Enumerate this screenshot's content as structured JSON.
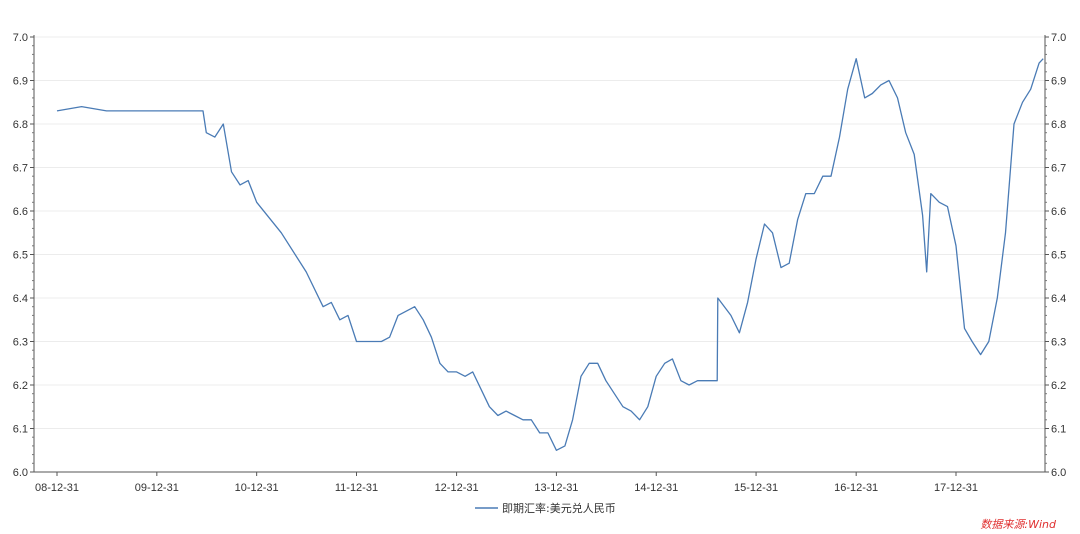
{
  "chart_data": {
    "type": "line",
    "title": "",
    "xlabel": "",
    "ylabel": "",
    "ylim": [
      6.0,
      7.0
    ],
    "yticks": [
      "6.0",
      "6.1",
      "6.2",
      "6.3",
      "6.4",
      "6.5",
      "6.6",
      "6.7",
      "6.8",
      "6.9",
      "7.0"
    ],
    "x_tick_labels": [
      "08-12-31",
      "09-12-31",
      "10-12-31",
      "11-12-31",
      "12-12-31",
      "13-12-31",
      "14-12-31",
      "15-12-31",
      "16-12-31",
      "17-12-31"
    ],
    "grid": true,
    "legend_position": "bottom-center",
    "series": [
      {
        "name": "即期汇率:美元兑人民币",
        "color": "#4a7bb5",
        "points": [
          [
            "08-12-31",
            6.83
          ],
          [
            "09-03-31",
            6.84
          ],
          [
            "09-06-30",
            6.83
          ],
          [
            "09-09-30",
            6.83
          ],
          [
            "09-12-31",
            6.83
          ],
          [
            "10-03-31",
            6.83
          ],
          [
            "10-06-18",
            6.83
          ],
          [
            "10-06-30",
            6.78
          ],
          [
            "10-07-31",
            6.77
          ],
          [
            "10-08-31",
            6.8
          ],
          [
            "10-09-30",
            6.69
          ],
          [
            "10-10-31",
            6.66
          ],
          [
            "10-11-30",
            6.67
          ],
          [
            "10-12-31",
            6.62
          ],
          [
            "11-03-31",
            6.55
          ],
          [
            "11-06-30",
            6.46
          ],
          [
            "11-08-31",
            6.38
          ],
          [
            "11-09-30",
            6.39
          ],
          [
            "11-10-31",
            6.35
          ],
          [
            "11-11-30",
            6.36
          ],
          [
            "11-12-31",
            6.3
          ],
          [
            "12-02-29",
            6.3
          ],
          [
            "12-03-31",
            6.3
          ],
          [
            "12-04-30",
            6.31
          ],
          [
            "12-05-31",
            6.36
          ],
          [
            "12-07-31",
            6.38
          ],
          [
            "12-08-31",
            6.35
          ],
          [
            "12-09-30",
            6.31
          ],
          [
            "12-10-31",
            6.25
          ],
          [
            "12-11-30",
            6.23
          ],
          [
            "12-12-31",
            6.23
          ],
          [
            "13-01-31",
            6.22
          ],
          [
            "13-02-28",
            6.23
          ],
          [
            "13-04-30",
            6.15
          ],
          [
            "13-05-31",
            6.13
          ],
          [
            "13-06-30",
            6.14
          ],
          [
            "13-07-31",
            6.13
          ],
          [
            "13-08-31",
            6.12
          ],
          [
            "13-09-30",
            6.12
          ],
          [
            "13-10-31",
            6.09
          ],
          [
            "13-11-30",
            6.09
          ],
          [
            "13-12-31",
            6.05
          ],
          [
            "14-01-31",
            6.06
          ],
          [
            "14-02-28",
            6.12
          ],
          [
            "14-03-31",
            6.22
          ],
          [
            "14-04-30",
            6.25
          ],
          [
            "14-05-31",
            6.25
          ],
          [
            "14-06-30",
            6.21
          ],
          [
            "14-07-31",
            6.18
          ],
          [
            "14-08-31",
            6.15
          ],
          [
            "14-09-30",
            6.14
          ],
          [
            "14-10-31",
            6.12
          ],
          [
            "14-11-30",
            6.15
          ],
          [
            "14-12-31",
            6.22
          ],
          [
            "15-01-31",
            6.25
          ],
          [
            "15-02-28",
            6.26
          ],
          [
            "15-03-31",
            6.21
          ],
          [
            "15-04-30",
            6.2
          ],
          [
            "15-05-31",
            6.21
          ],
          [
            "15-06-30",
            6.21
          ],
          [
            "15-07-31",
            6.21
          ],
          [
            "15-08-11",
            6.21
          ],
          [
            "15-08-13",
            6.4
          ],
          [
            "15-09-30",
            6.36
          ],
          [
            "15-10-31",
            6.32
          ],
          [
            "15-11-30",
            6.39
          ],
          [
            "15-12-31",
            6.49
          ],
          [
            "16-01-31",
            6.57
          ],
          [
            "16-02-29",
            6.55
          ],
          [
            "16-03-31",
            6.47
          ],
          [
            "16-04-30",
            6.48
          ],
          [
            "16-05-31",
            6.58
          ],
          [
            "16-06-30",
            6.64
          ],
          [
            "16-07-31",
            6.64
          ],
          [
            "16-08-31",
            6.68
          ],
          [
            "16-09-30",
            6.68
          ],
          [
            "16-10-31",
            6.77
          ],
          [
            "16-11-30",
            6.88
          ],
          [
            "16-12-31",
            6.95
          ],
          [
            "17-01-31",
            6.86
          ],
          [
            "17-02-28",
            6.87
          ],
          [
            "17-03-31",
            6.89
          ],
          [
            "17-04-30",
            6.9
          ],
          [
            "17-05-31",
            6.86
          ],
          [
            "17-06-30",
            6.78
          ],
          [
            "17-07-31",
            6.73
          ],
          [
            "17-08-31",
            6.59
          ],
          [
            "17-09-15",
            6.46
          ],
          [
            "17-09-30",
            6.64
          ],
          [
            "17-10-31",
            6.62
          ],
          [
            "17-11-30",
            6.61
          ],
          [
            "17-12-31",
            6.52
          ],
          [
            "18-01-31",
            6.33
          ],
          [
            "18-02-28",
            6.3
          ],
          [
            "18-03-31",
            6.27
          ],
          [
            "18-04-30",
            6.3
          ],
          [
            "18-05-31",
            6.4
          ],
          [
            "18-06-30",
            6.55
          ],
          [
            "18-07-31",
            6.8
          ],
          [
            "18-08-31",
            6.85
          ],
          [
            "18-09-30",
            6.88
          ],
          [
            "18-10-31",
            6.94
          ],
          [
            "18-11-15",
            6.95
          ]
        ]
      }
    ]
  },
  "source_note": "数据来源:Wind"
}
